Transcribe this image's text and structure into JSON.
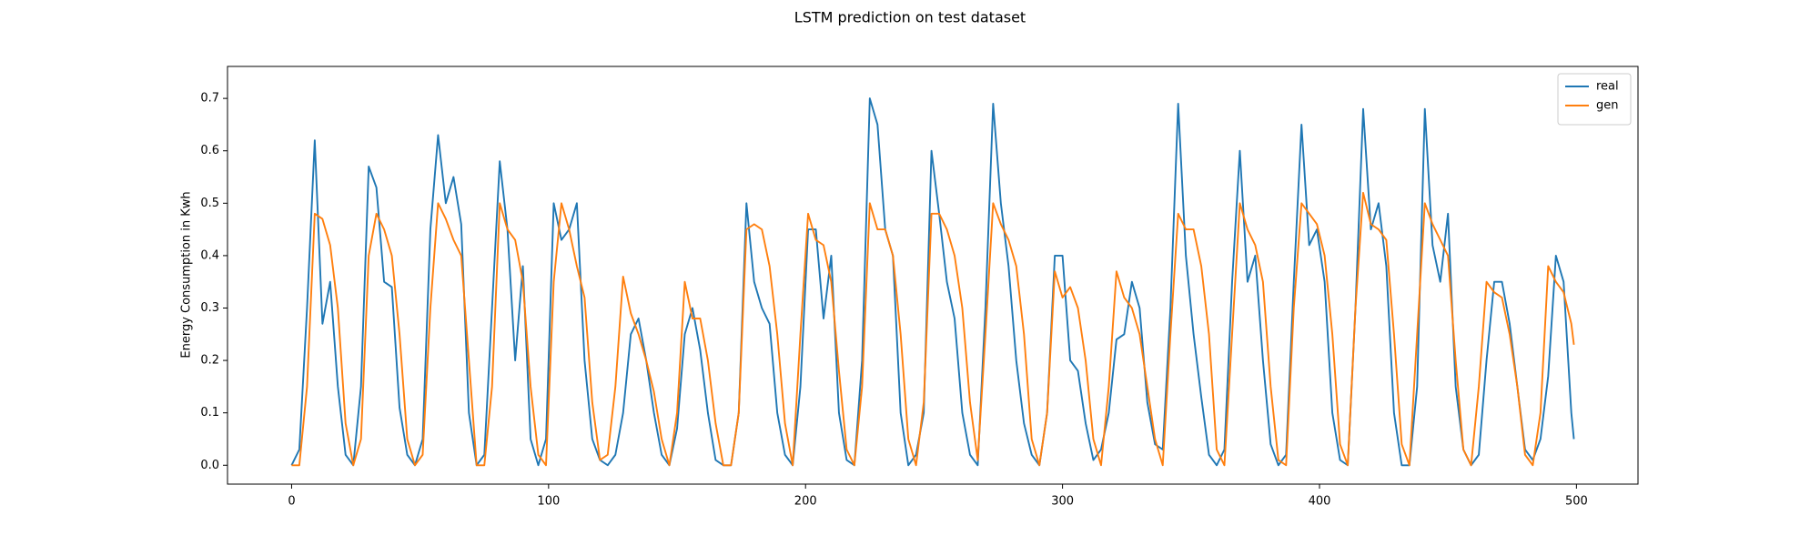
{
  "chart_data": {
    "type": "line",
    "title": "LSTM prediction on test dataset",
    "y_label": "Energy Consumption in Kwh",
    "x": [
      0,
      3,
      6,
      9,
      12,
      15,
      18,
      21,
      24,
      27,
      30,
      33,
      36,
      39,
      42,
      45,
      48,
      51,
      54,
      57,
      60,
      63,
      66,
      69,
      72,
      75,
      78,
      81,
      84,
      87,
      90,
      93,
      96,
      99,
      102,
      105,
      108,
      111,
      114,
      117,
      120,
      123,
      126,
      129,
      132,
      135,
      138,
      141,
      144,
      147,
      150,
      153,
      156,
      159,
      162,
      165,
      168,
      171,
      174,
      177,
      180,
      183,
      186,
      189,
      192,
      195,
      198,
      201,
      204,
      207,
      210,
      213,
      216,
      219,
      222,
      225,
      228,
      231,
      234,
      237,
      240,
      243,
      246,
      249,
      252,
      255,
      258,
      261,
      264,
      267,
      270,
      273,
      276,
      279,
      282,
      285,
      288,
      291,
      294,
      297,
      300,
      303,
      306,
      309,
      312,
      315,
      318,
      321,
      324,
      327,
      330,
      333,
      336,
      339,
      342,
      345,
      348,
      351,
      354,
      357,
      360,
      363,
      366,
      369,
      372,
      375,
      378,
      381,
      384,
      387,
      390,
      393,
      396,
      399,
      402,
      405,
      408,
      411,
      414,
      417,
      420,
      423,
      426,
      429,
      432,
      435,
      438,
      441,
      444,
      447,
      450,
      453,
      456,
      459,
      462,
      465,
      468,
      471,
      474,
      477,
      480,
      483,
      486,
      489,
      492,
      495,
      498,
      499
    ],
    "series": [
      {
        "name": "real",
        "color": "#1f77b4",
        "values": [
          0,
          0.03,
          0.3,
          0.62,
          0.27,
          0.35,
          0.15,
          0.02,
          0,
          0.15,
          0.57,
          0.53,
          0.35,
          0.34,
          0.11,
          0.02,
          0,
          0.05,
          0.45,
          0.63,
          0.5,
          0.55,
          0.46,
          0.1,
          0,
          0.02,
          0.3,
          0.58,
          0.45,
          0.2,
          0.38,
          0.05,
          0,
          0.05,
          0.5,
          0.43,
          0.45,
          0.5,
          0.2,
          0.05,
          0.01,
          0,
          0.02,
          0.1,
          0.25,
          0.28,
          0.2,
          0.1,
          0.02,
          0,
          0.07,
          0.25,
          0.3,
          0.22,
          0.1,
          0.01,
          0,
          0,
          0.1,
          0.5,
          0.35,
          0.3,
          0.27,
          0.1,
          0.02,
          0,
          0.15,
          0.45,
          0.45,
          0.28,
          0.4,
          0.1,
          0.01,
          0,
          0.2,
          0.7,
          0.65,
          0.45,
          0.4,
          0.1,
          0,
          0.02,
          0.1,
          0.6,
          0.48,
          0.35,
          0.28,
          0.1,
          0.02,
          0,
          0.3,
          0.69,
          0.5,
          0.38,
          0.2,
          0.08,
          0.02,
          0,
          0.1,
          0.4,
          0.4,
          0.2,
          0.18,
          0.08,
          0.01,
          0.03,
          0.1,
          0.24,
          0.25,
          0.35,
          0.3,
          0.12,
          0.04,
          0.03,
          0.3,
          0.69,
          0.4,
          0.25,
          0.13,
          0.02,
          0,
          0.03,
          0.35,
          0.6,
          0.35,
          0.4,
          0.2,
          0.04,
          0,
          0.02,
          0.35,
          0.65,
          0.42,
          0.45,
          0.35,
          0.1,
          0.01,
          0,
          0.3,
          0.68,
          0.45,
          0.5,
          0.38,
          0.1,
          0,
          0,
          0.15,
          0.68,
          0.42,
          0.35,
          0.48,
          0.15,
          0.03,
          0,
          0.02,
          0.2,
          0.35,
          0.35,
          0.27,
          0.15,
          0.03,
          0.01,
          0.05,
          0.17,
          0.4,
          0.35,
          0.1,
          0.05
        ]
      },
      {
        "name": "gen",
        "color": "#ff7f0e",
        "values": [
          0,
          0,
          0.15,
          0.48,
          0.47,
          0.42,
          0.3,
          0.08,
          0,
          0.05,
          0.4,
          0.48,
          0.45,
          0.4,
          0.25,
          0.05,
          0,
          0.02,
          0.3,
          0.5,
          0.47,
          0.43,
          0.4,
          0.2,
          0,
          0,
          0.15,
          0.5,
          0.45,
          0.43,
          0.35,
          0.15,
          0.02,
          0,
          0.35,
          0.5,
          0.45,
          0.38,
          0.32,
          0.12,
          0.01,
          0.02,
          0.15,
          0.36,
          0.29,
          0.25,
          0.2,
          0.14,
          0.05,
          0,
          0.1,
          0.35,
          0.28,
          0.28,
          0.2,
          0.08,
          0,
          0,
          0.1,
          0.45,
          0.46,
          0.45,
          0.38,
          0.25,
          0.08,
          0,
          0.25,
          0.48,
          0.43,
          0.42,
          0.35,
          0.18,
          0.03,
          0,
          0.15,
          0.5,
          0.45,
          0.45,
          0.4,
          0.25,
          0.05,
          0,
          0.12,
          0.48,
          0.48,
          0.45,
          0.4,
          0.3,
          0.12,
          0.01,
          0.25,
          0.5,
          0.46,
          0.43,
          0.38,
          0.25,
          0.05,
          0,
          0.1,
          0.37,
          0.32,
          0.34,
          0.3,
          0.2,
          0.05,
          0,
          0.15,
          0.37,
          0.32,
          0.3,
          0.25,
          0.15,
          0.05,
          0,
          0.25,
          0.48,
          0.45,
          0.45,
          0.38,
          0.25,
          0.03,
          0,
          0.25,
          0.5,
          0.45,
          0.42,
          0.35,
          0.15,
          0.01,
          0,
          0.3,
          0.5,
          0.48,
          0.46,
          0.4,
          0.25,
          0.04,
          0,
          0.3,
          0.52,
          0.46,
          0.45,
          0.43,
          0.25,
          0.04,
          0,
          0.25,
          0.5,
          0.46,
          0.43,
          0.4,
          0.2,
          0.03,
          0,
          0.15,
          0.35,
          0.33,
          0.32,
          0.25,
          0.15,
          0.02,
          0,
          0.1,
          0.38,
          0.35,
          0.33,
          0.27,
          0.23
        ]
      }
    ],
    "xlim": [
      -24.95,
      523.95
    ],
    "xticks": [
      0,
      100,
      200,
      300,
      400,
      500
    ],
    "ylim": [
      -0.036,
      0.761
    ],
    "yticks": [
      {
        "value": 0,
        "label": "0.0"
      },
      0.1,
      0.2,
      0.3,
      0.4,
      0.5,
      0.6,
      0.7
    ],
    "grid": false,
    "legend": "upper-right"
  }
}
